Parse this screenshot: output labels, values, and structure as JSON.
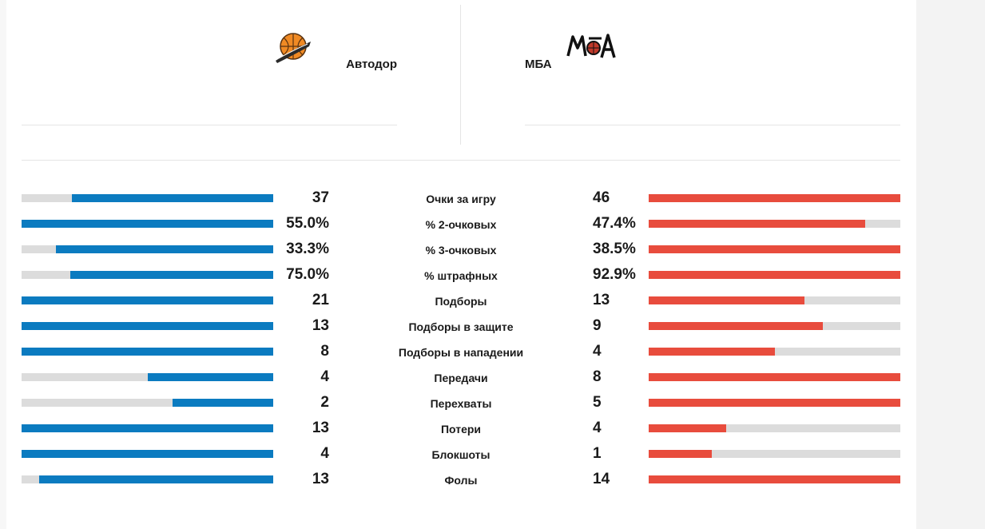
{
  "colors": {
    "home_bar": "#0b7bc0",
    "away_bar": "#e84c3d",
    "track": "#dcdcdc"
  },
  "teams": {
    "home": {
      "name": "Автодор",
      "logo_icon": "basketball-logo-icon"
    },
    "away": {
      "name": "МБА",
      "logo_icon": "mba-logo-icon"
    }
  },
  "stats": [
    {
      "label": "Очки за игру",
      "home": "37",
      "away": "46",
      "home_fill": 0.8,
      "away_fill": 1.0
    },
    {
      "label": "% 2-очковых",
      "home": "55.0%",
      "away": "47.4%",
      "home_fill": 1.0,
      "away_fill": 0.86
    },
    {
      "label": "% 3-очковых",
      "home": "33.3%",
      "away": "38.5%",
      "home_fill": 0.865,
      "away_fill": 1.0
    },
    {
      "label": "% штрафных",
      "home": "75.0%",
      "away": "92.9%",
      "home_fill": 0.807,
      "away_fill": 1.0
    },
    {
      "label": "Подборы",
      "home": "21",
      "away": "13",
      "home_fill": 1.0,
      "away_fill": 0.619
    },
    {
      "label": "Подборы в защите",
      "home": "13",
      "away": "9",
      "home_fill": 1.0,
      "away_fill": 0.692
    },
    {
      "label": "Подборы в нападении",
      "home": "8",
      "away": "4",
      "home_fill": 1.0,
      "away_fill": 0.5
    },
    {
      "label": "Передачи",
      "home": "4",
      "away": "8",
      "home_fill": 0.5,
      "away_fill": 1.0
    },
    {
      "label": "Перехваты",
      "home": "2",
      "away": "5",
      "home_fill": 0.4,
      "away_fill": 1.0
    },
    {
      "label": "Потери",
      "home": "13",
      "away": "4",
      "home_fill": 1.0,
      "away_fill": 0.308
    },
    {
      "label": "Блокшоты",
      "home": "4",
      "away": "1",
      "home_fill": 1.0,
      "away_fill": 0.25
    },
    {
      "label": "Фолы",
      "home": "13",
      "away": "14",
      "home_fill": 0.929,
      "away_fill": 1.0
    }
  ]
}
